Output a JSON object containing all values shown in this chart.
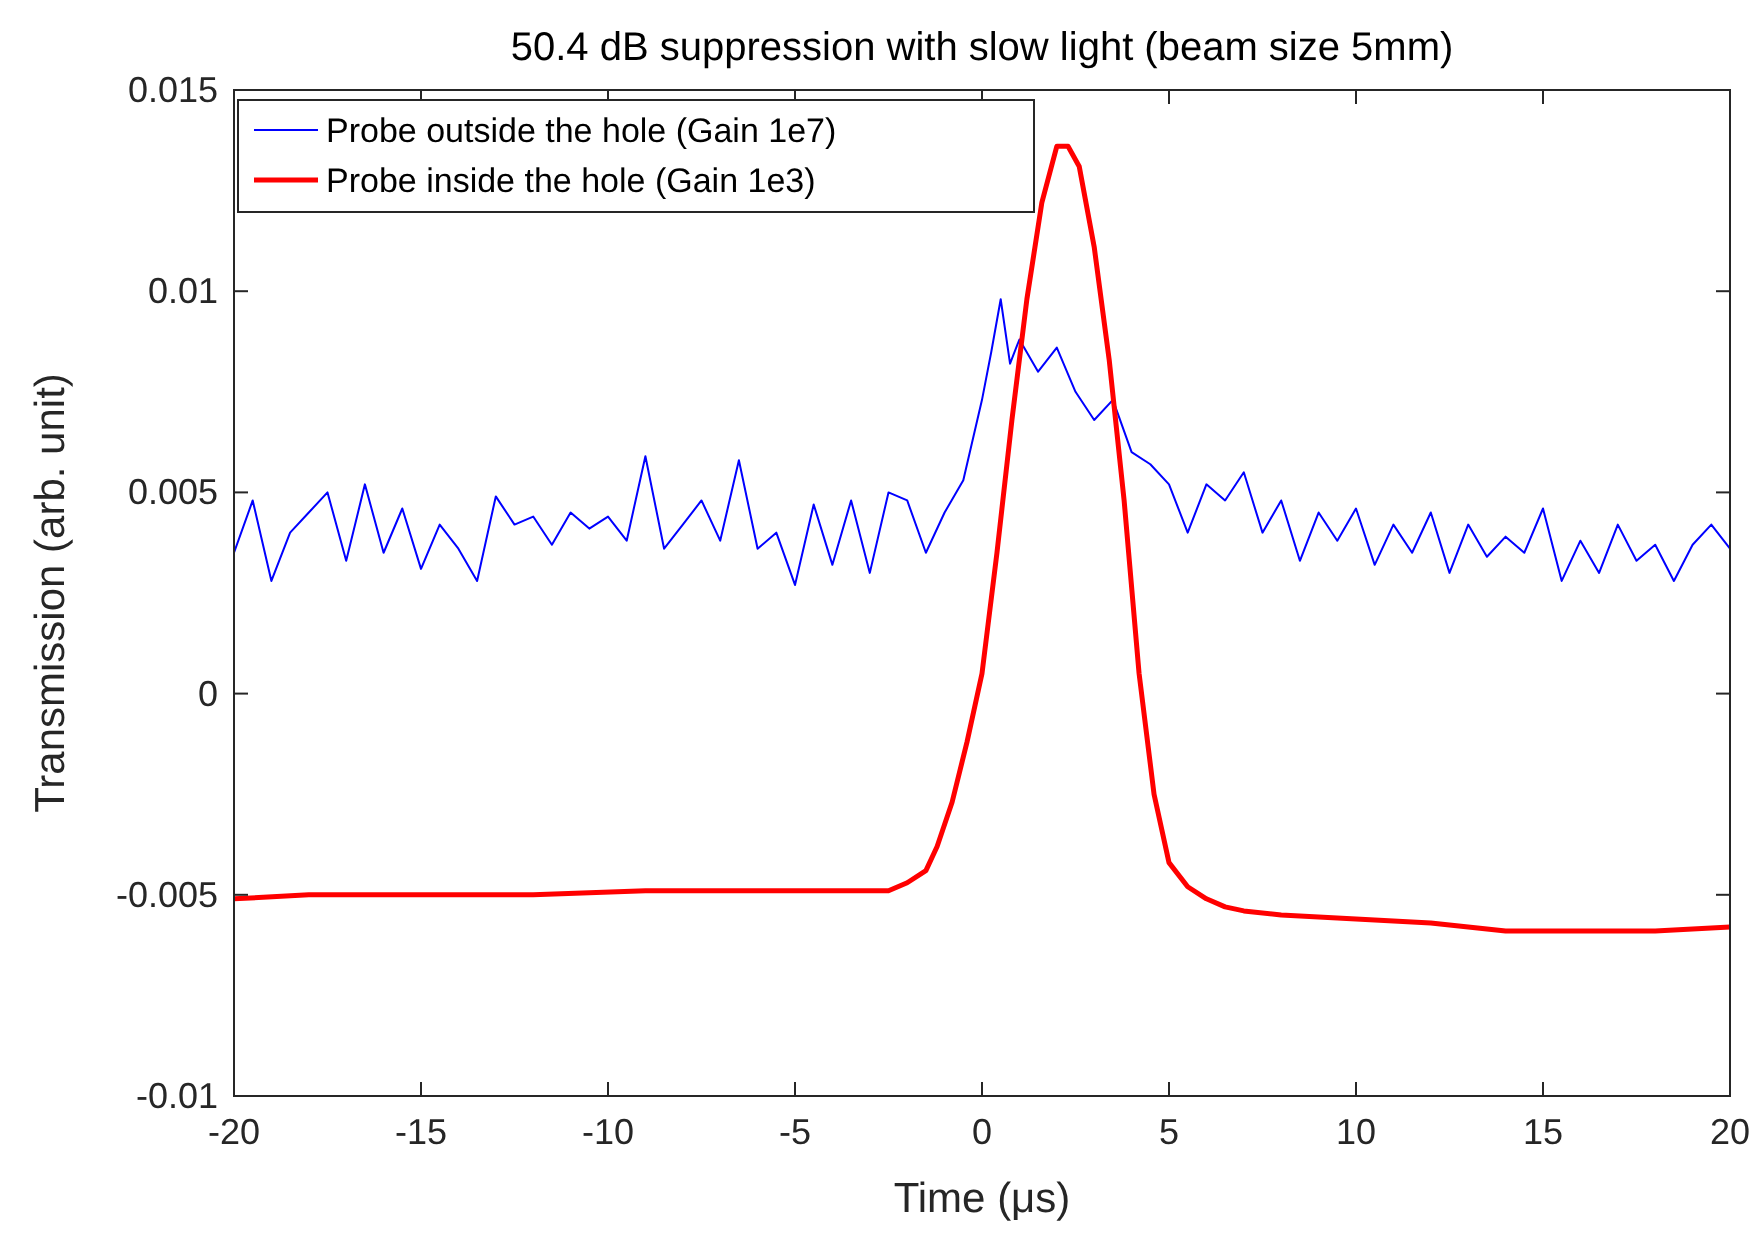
{
  "chart_data": {
    "type": "line",
    "title": "50.4 dB suppression with slow light (beam size 5mm)",
    "xlabel": "Time (μs)",
    "ylabel": "Transmission (arb. unit)",
    "xlim": [
      -20,
      20
    ],
    "xticks": [
      -20,
      -15,
      -10,
      -5,
      0,
      5,
      10,
      15,
      20
    ],
    "ylim": [
      -0.01,
      0.015
    ],
    "yticks": [
      -0.01,
      -0.005,
      0,
      {
        "value": 0.005,
        "label": "0.005"
      },
      {
        "value": 0.01,
        "label": "0.01"
      },
      {
        "value": 0.015,
        "label": "0.015"
      }
    ],
    "grid": false,
    "legend": "top left",
    "line_style": "solid",
    "series": [
      {
        "name": "Probe outside the hole (Gain 1e7)",
        "color": "#0000ff",
        "x": [
          -20,
          -19.5,
          -19,
          -18.5,
          -18,
          -17.5,
          -17,
          -16.5,
          -16,
          -15.5,
          -15,
          -14.5,
          -14,
          -13.5,
          -13,
          -12.5,
          -12,
          -11.5,
          -11,
          -10.5,
          -10,
          -9.5,
          -9,
          -8.5,
          -8,
          -7.5,
          -7,
          -6.5,
          -6,
          -5.5,
          -5,
          -4.5,
          -4,
          -3.5,
          -3,
          -2.5,
          -2,
          -1.5,
          -1,
          -0.5,
          0,
          0.25,
          0.5,
          0.75,
          1,
          1.5,
          2,
          2.5,
          3,
          3.5,
          4,
          4.5,
          5,
          5.5,
          6,
          6.5,
          7,
          7.5,
          8,
          8.5,
          9,
          9.5,
          10,
          10.5,
          11,
          11.5,
          12,
          12.5,
          13,
          13.5,
          14,
          14.5,
          15,
          15.5,
          16,
          16.5,
          17,
          17.5,
          18,
          18.5,
          19,
          19.5,
          20
        ],
        "values": [
          0.0035,
          0.0048,
          0.0028,
          0.004,
          0.0045,
          0.005,
          0.0033,
          0.0052,
          0.0035,
          0.0046,
          0.0031,
          0.0042,
          0.0036,
          0.0028,
          0.0049,
          0.0042,
          0.0044,
          0.0037,
          0.0045,
          0.0041,
          0.0044,
          0.0038,
          0.0059,
          0.0036,
          0.0042,
          0.0048,
          0.0038,
          0.0058,
          0.0036,
          0.004,
          0.0027,
          0.0047,
          0.0032,
          0.0048,
          0.003,
          0.005,
          0.0048,
          0.0035,
          0.0045,
          0.0053,
          0.0073,
          0.0085,
          0.0098,
          0.0082,
          0.0088,
          0.008,
          0.0086,
          0.0075,
          0.0068,
          0.0073,
          0.006,
          0.0057,
          0.0052,
          0.004,
          0.0052,
          0.0048,
          0.0055,
          0.004,
          0.0048,
          0.0033,
          0.0045,
          0.0038,
          0.0046,
          0.0032,
          0.0042,
          0.0035,
          0.0045,
          0.003,
          0.0042,
          0.0034,
          0.0039,
          0.0035,
          0.0046,
          0.0028,
          0.0038,
          0.003,
          0.0042,
          0.0033,
          0.0037,
          0.0028,
          0.0037,
          0.0042,
          0.0036
        ]
      },
      {
        "name": "Probe inside the hole (Gain 1e3)",
        "color": "#ff0000",
        "x": [
          -20,
          -18,
          -15,
          -12,
          -9,
          -6,
          -4,
          -2.5,
          -2,
          -1.5,
          -1.2,
          -0.8,
          -0.4,
          0,
          0.4,
          0.8,
          1.2,
          1.6,
          2,
          2.3,
          2.6,
          3,
          3.4,
          3.8,
          4.2,
          4.6,
          5,
          5.5,
          6,
          6.5,
          7,
          8,
          10,
          12,
          14,
          16,
          18,
          20
        ],
        "values": [
          -0.0051,
          -0.005,
          -0.005,
          -0.005,
          -0.0049,
          -0.0049,
          -0.0049,
          -0.0049,
          -0.0047,
          -0.0044,
          -0.0038,
          -0.0027,
          -0.0012,
          0.0005,
          0.0035,
          0.0068,
          0.0098,
          0.0122,
          0.0136,
          0.0136,
          0.0131,
          0.0111,
          0.0083,
          0.0048,
          0.0005,
          -0.0025,
          -0.0042,
          -0.0048,
          -0.0051,
          -0.0053,
          -0.0054,
          -0.0055,
          -0.0056,
          -0.0057,
          -0.0059,
          -0.0059,
          -0.0059,
          -0.0058
        ]
      }
    ]
  }
}
